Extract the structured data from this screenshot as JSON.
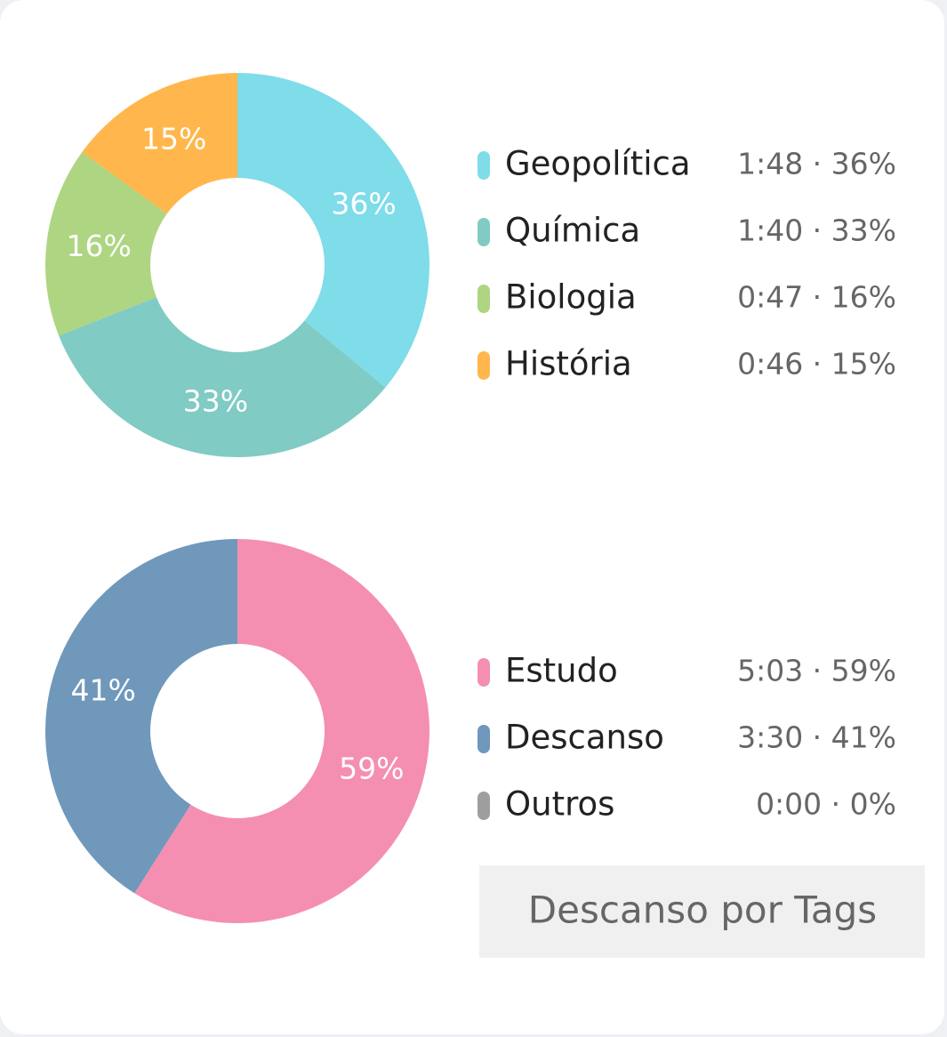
{
  "chart_data": [
    {
      "type": "donut",
      "categories": [
        "Geopolítica",
        "Química",
        "Biologia",
        "História"
      ],
      "values": [
        36,
        33,
        16,
        15
      ],
      "value_labels": [
        "36%",
        "33%",
        "16%",
        "15%"
      ],
      "legend_values": [
        "1:48 · 36%",
        "1:40 · 33%",
        "0:47 · 16%",
        "0:46 · 15%"
      ],
      "colors": [
        "#7fdce9",
        "#80cbc4",
        "#aed581",
        "#ffb74d"
      ]
    },
    {
      "type": "donut",
      "categories": [
        "Estudo",
        "Descanso",
        "Outros"
      ],
      "values": [
        59,
        41,
        0
      ],
      "value_labels": [
        "59%",
        "41%",
        null
      ],
      "legend_values": [
        "5:03 · 59%",
        "3:30 · 41%",
        "0:00 · 0%"
      ],
      "colors": [
        "#f48fb1",
        "#6f98bb",
        "#9e9e9e"
      ]
    }
  ],
  "button": "Descanso por Tags"
}
